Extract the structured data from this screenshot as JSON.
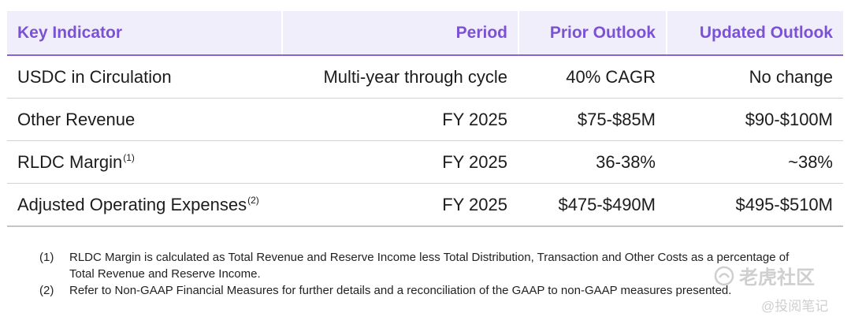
{
  "table": {
    "headers": [
      "Key Indicator",
      "Period",
      "Prior Outlook",
      "Updated Outlook"
    ],
    "rows": [
      {
        "indicator": "USDC in Circulation",
        "sup": "",
        "period": "Multi-year through cycle",
        "prior": "40% CAGR",
        "updated": "No change"
      },
      {
        "indicator": "Other Revenue",
        "sup": "",
        "period": "FY 2025",
        "prior": "$75-$85M",
        "updated": "$90-$100M"
      },
      {
        "indicator": "RLDC Margin",
        "sup": "(1)",
        "period": "FY 2025",
        "prior": "36-38%",
        "updated": "~38%"
      },
      {
        "indicator": "Adjusted Operating Expenses",
        "sup": "(2)",
        "period": "FY 2025",
        "prior": "$475-$490M",
        "updated": "$495-$510M"
      }
    ]
  },
  "footnotes": [
    {
      "num": "(1)",
      "text": "RLDC Margin is calculated as Total Revenue and Reserve Income less Total Distribution, Transaction and Other Costs as a percentage of Total Revenue and Reserve Income."
    },
    {
      "num": "(2)",
      "text": "Refer to Non-GAAP Financial Measures for further details and a reconciliation of the GAAP to non-GAAP measures presented."
    }
  ],
  "watermark": {
    "brand": "老虎社区",
    "handle": "@投阅笔记"
  }
}
